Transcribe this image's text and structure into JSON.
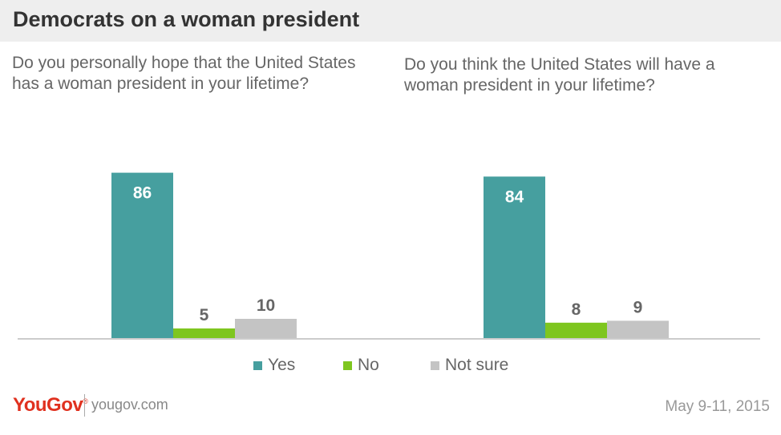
{
  "header": {
    "title": "Democrats on a woman president"
  },
  "colors": {
    "yes": "#469f9f",
    "no": "#7ec61f",
    "not_sure": "#c4c4c4",
    "label_inside": "#ffffff",
    "label_outside": "#666666"
  },
  "legend": [
    {
      "label": "Yes",
      "color": "#469f9f"
    },
    {
      "label": "No",
      "color": "#7ec61f"
    },
    {
      "label": "Not sure",
      "color": "#c4c4c4"
    }
  ],
  "chart_data": [
    {
      "type": "bar",
      "title": "Do you personally hope that the United States has a woman president in your lifetime?",
      "categories": [
        "Yes",
        "No",
        "Not sure"
      ],
      "values": [
        86,
        5,
        10
      ],
      "ylim": [
        0,
        100
      ],
      "grid": false
    },
    {
      "type": "bar",
      "title": "Do you think the United States will have a woman president in your lifetime?",
      "categories": [
        "Yes",
        "No",
        "Not sure"
      ],
      "values": [
        84,
        8,
        9
      ],
      "ylim": [
        0,
        100
      ],
      "grid": false
    }
  ],
  "footer": {
    "brand": "YouGov",
    "brand_mark": "®",
    "site": "yougov.com",
    "date": "May 9-11, 2015"
  }
}
